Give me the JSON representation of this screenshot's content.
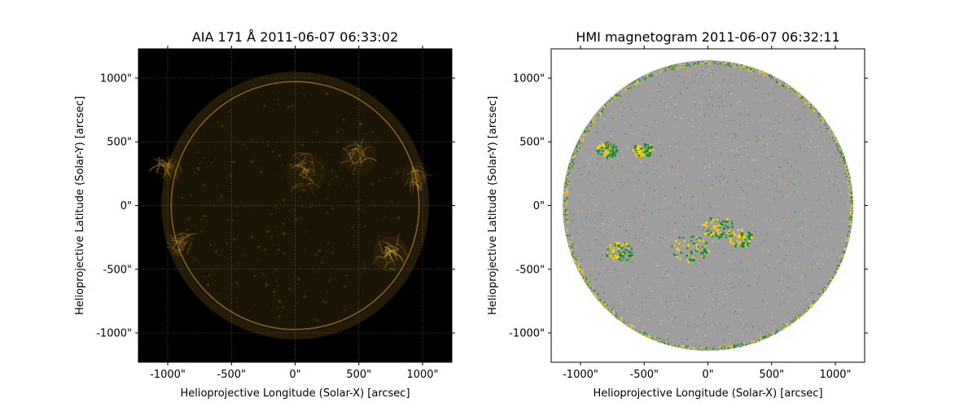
{
  "chart_data": [
    {
      "type": "heatmap",
      "title": "AIA 171 Å 2011-06-07 06:33:02",
      "xlabel": "Helioprojective Longitude (Solar-X) [arcsec]",
      "ylabel": "Helioprojective Latitude (Solar-Y) [arcsec]",
      "xlim": [
        -1230,
        1230
      ],
      "ylim": [
        -1230,
        1230
      ],
      "xticks": [
        -1000,
        -500,
        0,
        500,
        1000
      ],
      "yticks": [
        -1000,
        -500,
        0,
        500,
        1000
      ],
      "tick_labels": [
        "-1000\"",
        "-500\"",
        "0\"",
        "500\"",
        "1000\""
      ],
      "grid": true,
      "solar_radius": 980,
      "colors": {
        "background": "#000000",
        "disk": "#1c1506",
        "limb": "#c8901a",
        "bright": "#ffcf40"
      },
      "active_regions": [
        {
          "x": 750,
          "y": -380,
          "r": 140,
          "intensity": 0.95
        },
        {
          "x": 500,
          "y": 380,
          "r": 140,
          "intensity": 0.6
        },
        {
          "x": 80,
          "y": 260,
          "r": 160,
          "intensity": 0.55
        },
        {
          "x": -1000,
          "y": 300,
          "r": 110,
          "intensity": 0.5
        },
        {
          "x": 950,
          "y": 240,
          "r": 110,
          "intensity": 0.5
        },
        {
          "x": -900,
          "y": -300,
          "r": 100,
          "intensity": 0.35
        }
      ]
    },
    {
      "type": "heatmap",
      "title": "HMI magnetogram 2011-06-07 06:32:11",
      "xlabel": "Helioprojective Longitude (Solar-X) [arcsec]",
      "ylabel": "Helioprojective Latitude (Solar-Y) [arcsec]",
      "xlim": [
        -1230,
        1230
      ],
      "ylim": [
        -1230,
        1230
      ],
      "xticks": [
        -1000,
        -500,
        0,
        500,
        1000
      ],
      "yticks": [
        -1000,
        -500,
        0,
        500,
        1000
      ],
      "tick_labels": [
        "-1000\"",
        "-500\"",
        "0\"",
        "500\"",
        "1000\""
      ],
      "grid": false,
      "solar_radius": 1140,
      "colors": {
        "background": "#ffffff",
        "disk": "#9e9e9e",
        "positive": "#ffd200",
        "negative": "#138a2c"
      },
      "active_regions": [
        {
          "x": -800,
          "y": 440,
          "r": 90
        },
        {
          "x": -520,
          "y": 440,
          "r": 80
        },
        {
          "x": -700,
          "y": -360,
          "r": 110
        },
        {
          "x": -150,
          "y": -330,
          "r": 150
        },
        {
          "x": 80,
          "y": -170,
          "r": 130
        },
        {
          "x": 250,
          "y": -250,
          "r": 100
        }
      ]
    }
  ]
}
